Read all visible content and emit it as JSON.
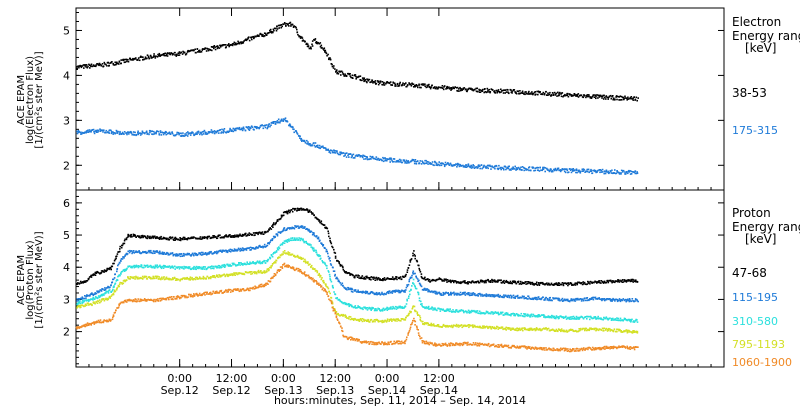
{
  "chart_data": [
    {
      "type": "scatter",
      "panel": "electron",
      "ylabel": [
        "ACE EPAM",
        "log(Electron Flux)",
        "[1/(cm²s ster MeV)]"
      ],
      "legend_title": [
        "Electron",
        "Energy range",
        "[keV]"
      ],
      "ylim": [
        1.45,
        5.5
      ],
      "yticks": [
        2,
        3,
        4,
        5
      ],
      "series": [
        {
          "name": "38-53",
          "color": "#000000",
          "x": [
            0,
            6,
            12,
            18,
            24,
            30,
            36,
            44,
            48,
            50,
            52,
            54,
            55,
            56,
            58,
            60,
            62,
            64,
            66,
            67,
            70,
            78,
            90,
            102,
            114,
            124,
            130
          ],
          "y": [
            4.2,
            4.25,
            4.35,
            4.45,
            4.5,
            4.6,
            4.7,
            4.95,
            5.15,
            5.15,
            4.85,
            4.6,
            4.8,
            4.75,
            4.5,
            4.1,
            4.05,
            4.0,
            3.95,
            3.9,
            3.85,
            3.8,
            3.7,
            3.65,
            3.58,
            3.52,
            3.5
          ]
        },
        {
          "name": "175-315",
          "color": "#1e7ad8",
          "x": [
            0,
            6,
            12,
            18,
            24,
            30,
            36,
            44,
            48,
            50,
            52,
            54,
            56,
            58,
            60,
            62,
            66,
            70,
            78,
            90,
            102,
            114,
            124,
            130
          ],
          "y": [
            2.75,
            2.78,
            2.72,
            2.75,
            2.7,
            2.75,
            2.8,
            2.88,
            3.05,
            2.85,
            2.6,
            2.5,
            2.45,
            2.35,
            2.3,
            2.25,
            2.2,
            2.15,
            2.1,
            2.0,
            1.95,
            1.9,
            1.87,
            1.85
          ]
        }
      ]
    },
    {
      "type": "scatter",
      "panel": "proton",
      "ylabel": [
        "ACE EPAM",
        "log(Proton Flux)",
        "[1/(cm²s ster MeV)]"
      ],
      "legend_title": [
        "Proton",
        "Energy range",
        "[keV]"
      ],
      "ylim": [
        0.9,
        6.4
      ],
      "yticks": [
        2,
        3,
        4,
        5,
        6
      ],
      "series": [
        {
          "name": "47-68",
          "color": "#000000",
          "x": [
            0,
            2,
            4,
            6,
            8,
            10,
            12,
            14,
            16,
            18,
            24,
            30,
            36,
            40,
            44,
            46,
            48,
            50,
            52,
            54,
            56,
            58,
            60,
            62,
            64,
            70,
            76,
            78,
            80,
            82,
            84,
            86,
            90,
            96,
            102,
            108,
            114,
            120,
            126,
            130
          ],
          "y": [
            3.5,
            3.6,
            3.8,
            3.9,
            4.0,
            4.6,
            5.0,
            5.0,
            4.95,
            4.95,
            4.9,
            4.95,
            5.0,
            5.05,
            5.1,
            5.4,
            5.7,
            5.8,
            5.85,
            5.75,
            5.5,
            5.2,
            4.3,
            3.9,
            3.75,
            3.65,
            3.7,
            4.5,
            3.7,
            3.6,
            3.65,
            3.6,
            3.55,
            3.6,
            3.55,
            3.5,
            3.5,
            3.55,
            3.6,
            3.6
          ]
        },
        {
          "name": "115-195",
          "color": "#1e7ad8",
          "x": [
            0,
            4,
            8,
            10,
            12,
            18,
            24,
            30,
            36,
            40,
            44,
            46,
            48,
            50,
            52,
            54,
            56,
            58,
            60,
            62,
            64,
            70,
            76,
            78,
            80,
            84,
            90,
            96,
            102,
            108,
            114,
            120,
            126,
            130
          ],
          "y": [
            3.0,
            3.2,
            3.45,
            4.2,
            4.5,
            4.5,
            4.4,
            4.45,
            4.55,
            4.6,
            4.7,
            5.0,
            5.2,
            5.25,
            5.3,
            5.15,
            4.9,
            4.5,
            3.7,
            3.4,
            3.3,
            3.2,
            3.3,
            3.9,
            3.35,
            3.2,
            3.2,
            3.15,
            3.1,
            3.05,
            3.0,
            3.05,
            3.0,
            3.0
          ]
        },
        {
          "name": "310-580",
          "color": "#2be0dd",
          "x": [
            0,
            4,
            8,
            10,
            12,
            18,
            24,
            30,
            36,
            40,
            44,
            46,
            48,
            50,
            52,
            54,
            56,
            58,
            60,
            62,
            64,
            70,
            76,
            78,
            80,
            84,
            90,
            96,
            102,
            108,
            114,
            120,
            126,
            130
          ],
          "y": [
            2.9,
            3.05,
            3.3,
            3.8,
            4.05,
            4.05,
            4.0,
            4.0,
            4.1,
            4.15,
            4.2,
            4.5,
            4.8,
            4.9,
            4.9,
            4.7,
            4.4,
            4.0,
            3.1,
            2.9,
            2.8,
            2.7,
            2.8,
            3.6,
            2.8,
            2.7,
            2.65,
            2.6,
            2.55,
            2.5,
            2.45,
            2.45,
            2.4,
            2.35
          ]
        },
        {
          "name": "795-1193",
          "color": "#d3e026",
          "x": [
            0,
            4,
            8,
            10,
            12,
            18,
            24,
            30,
            36,
            40,
            44,
            46,
            48,
            50,
            52,
            54,
            56,
            58,
            60,
            62,
            64,
            70,
            76,
            78,
            80,
            84,
            90,
            96,
            102,
            108,
            114,
            120,
            126,
            130
          ],
          "y": [
            2.8,
            2.9,
            3.1,
            3.5,
            3.7,
            3.7,
            3.65,
            3.7,
            3.8,
            3.85,
            3.9,
            4.2,
            4.5,
            4.4,
            4.3,
            4.1,
            3.8,
            3.4,
            2.6,
            2.5,
            2.4,
            2.35,
            2.4,
            2.8,
            2.3,
            2.2,
            2.2,
            2.15,
            2.1,
            2.1,
            2.05,
            2.1,
            2.05,
            2.0
          ]
        },
        {
          "name": "1060-1900",
          "color": "#f08a26",
          "x": [
            0,
            4,
            8,
            10,
            12,
            18,
            24,
            30,
            36,
            40,
            44,
            46,
            48,
            50,
            52,
            54,
            56,
            58,
            62,
            64,
            66,
            70,
            76,
            78,
            80,
            84,
            90,
            96,
            102,
            108,
            114,
            120,
            126,
            130
          ],
          "y": [
            2.15,
            2.3,
            2.4,
            2.9,
            3.0,
            3.0,
            3.1,
            3.2,
            3.3,
            3.35,
            3.5,
            3.8,
            4.1,
            4.0,
            3.9,
            3.7,
            3.5,
            3.2,
            1.85,
            1.8,
            1.7,
            1.65,
            1.7,
            2.4,
            1.7,
            1.6,
            1.65,
            1.6,
            1.55,
            1.5,
            1.45,
            1.5,
            1.55,
            1.5
          ]
        }
      ]
    }
  ],
  "xaxis": {
    "range_hours": [
      0,
      150
    ],
    "ticks": [
      {
        "x": 24,
        "time": "0:00",
        "date": "Sep.12"
      },
      {
        "x": 36,
        "time": "12:00",
        "date": "Sep.12"
      },
      {
        "x": 48,
        "time": "0:00",
        "date": "Sep.13"
      },
      {
        "x": 60,
        "time": "12:00",
        "date": "Sep.13"
      },
      {
        "x": 72,
        "time": "0:00",
        "date": "Sep.14"
      },
      {
        "x": 84,
        "time": "12:00",
        "date": "Sep.14"
      }
    ],
    "minor_step": 3,
    "label": "hours:minutes, Sep. 11, 2014 – Sep. 14, 2014"
  }
}
